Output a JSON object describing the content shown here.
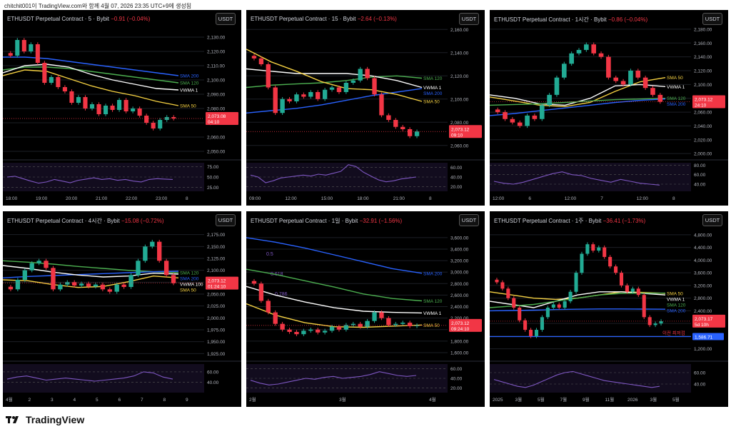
{
  "header": {
    "caption": "chitchit001이 TradingView.com와 함께 4월 07, 2026 23:35 UTC+9에 생성됨"
  },
  "footer": {
    "brand": "TradingView"
  },
  "colors": {
    "up": "#22ab94",
    "down": "#f23645",
    "sma200": "#2962ff",
    "sma120": "#4caf50",
    "sma50": "#f5d142",
    "vwma": "#ffffff",
    "rsi": "#7e57c2",
    "bb": "#b2b5be"
  },
  "panels": [
    {
      "title": "ETHUSDT Perpetual Contract · 5 · Bybit",
      "change": "−0.91 (−0.04%)",
      "button": "USDT"
    },
    {
      "title": "ETHUSDT Perpetual Contract · 15 · Bybit",
      "change": "−2.64 (−0.13%)",
      "button": "USDT"
    },
    {
      "title": "ETHUSDT Perpetual Contract · 1시간 · Bybit",
      "change": "−0.86 (−0.04%)",
      "button": "USDT"
    },
    {
      "title": "ETHUSDT Perpetual Contract · 4시간 · Bybit",
      "change": "−15.08 (−0.72%)",
      "button": "USDT"
    },
    {
      "title": "ETHUSDT Perpetual Contract · 1일 · Bybit",
      "change": "−32.91 (−1.56%)",
      "button": "USDT"
    },
    {
      "title": "ETHUSDT Perpetual Contract · 1주 · Bybit",
      "change": "−36.41 (−1.73%)",
      "button": "USDT"
    }
  ],
  "chart_data": [
    {
      "type": "candlestick",
      "timeframe": "5",
      "price_axis": [
        "2,130.00",
        "2,120.00",
        "2,110.00",
        "2,100.00",
        "2,090.00",
        "2,080.00",
        "2,070.00",
        "2,060.00",
        "2,050.00"
      ],
      "ylim": [
        2046,
        2137
      ],
      "x_labels": [
        "18:00",
        "19:00",
        "20:00",
        "21:00",
        "22:00",
        "23:00",
        "8"
      ],
      "close": [
        2117,
        2128,
        2120,
        2125,
        2112,
        2098,
        2102,
        2095,
        2092,
        2084,
        2088,
        2080,
        2083,
        2076,
        2082,
        2079,
        2086,
        2078,
        2080,
        2075,
        2070,
        2066,
        2072,
        2074,
        2073
      ],
      "overlays": [
        {
          "name": "SMA 200",
          "values": [
            2116,
            2116,
            2115,
            2113,
            2111,
            2109,
            2107,
            2105,
            2103
          ]
        },
        {
          "name": "SMA 120",
          "values": [
            2107,
            2109,
            2109,
            2108,
            2106,
            2104,
            2102,
            2100,
            2098
          ]
        },
        {
          "name": "VWMA 1",
          "values": [
            2105,
            2110,
            2111,
            2109,
            2104,
            2100,
            2097,
            2094,
            2093
          ]
        },
        {
          "name": "SMA 50",
          "values": [
            2103,
            2107,
            2106,
            2101,
            2096,
            2092,
            2089,
            2085,
            2082
          ]
        }
      ],
      "last_price": "2,073.08",
      "countdown": "04:10",
      "rsi_axis": [
        "75.00",
        "50.00",
        "25.00"
      ],
      "rsi_ylim": [
        15,
        85
      ],
      "rsi": [
        50,
        52,
        46,
        40,
        35,
        38,
        44,
        40,
        36,
        42,
        45,
        48,
        44,
        46,
        42,
        44,
        40,
        38,
        44,
        46,
        45,
        44
      ]
    },
    {
      "type": "candlestick",
      "timeframe": "15",
      "price_axis": [
        "2,160.00",
        "2,140.00",
        "2,120.00",
        "2,100.00",
        "2,080.00",
        "2,060.00"
      ],
      "ylim": [
        2050,
        2162
      ],
      "x_labels": [
        "09:00",
        "12:00",
        "15:00",
        "18:00",
        "21:00",
        "8"
      ],
      "close": [
        2135,
        2130,
        2110,
        2088,
        2100,
        2098,
        2104,
        2102,
        2106,
        2100,
        2108,
        2110,
        2106,
        2114,
        2116,
        2126,
        2118,
        2104,
        2086,
        2082,
        2076,
        2074,
        2068,
        2072
      ],
      "overlays": [
        {
          "name": "SMA 120",
          "values": [
            2110,
            2112,
            2113,
            2114,
            2116,
            2119,
            2120,
            2118
          ]
        },
        {
          "name": "VWMA 1",
          "values": [
            2126,
            2124,
            2122,
            2122,
            2122,
            2120,
            2116,
            2110
          ]
        },
        {
          "name": "SMA 200",
          "values": [
            2088,
            2090,
            2092,
            2095,
            2099,
            2103,
            2106,
            2109
          ]
        },
        {
          "name": "SMA 50",
          "values": [
            2143,
            2132,
            2124,
            2115,
            2109,
            2108,
            2104,
            2098
          ]
        }
      ],
      "last_price": "2,073.12",
      "countdown": "09:10",
      "rsi_axis": [
        "60.00",
        "40.00",
        "20.00"
      ],
      "rsi_ylim": [
        10,
        70
      ],
      "rsi": [
        44,
        40,
        28,
        32,
        38,
        40,
        42,
        44,
        42,
        46,
        44,
        48,
        52,
        66,
        62,
        50,
        42,
        34,
        30,
        32,
        36,
        38,
        40
      ]
    },
    {
      "type": "candlestick",
      "timeframe": "1시간",
      "price_axis": [
        "2,180.00",
        "2,160.00",
        "2,140.00",
        "2,120.00",
        "2,100.00",
        "2,080.00",
        "2,060.00",
        "2,040.00",
        "2,020.00",
        "2,000.00"
      ],
      "ylim": [
        1995,
        2183
      ],
      "x_labels": [
        "12:00",
        "6",
        "12:00",
        "7",
        "12:00",
        "8"
      ],
      "close": [
        2060,
        2050,
        2045,
        2040,
        2055,
        2050,
        2070,
        2085,
        2110,
        2130,
        2145,
        2150,
        2158,
        2145,
        2140,
        2110,
        2105,
        2100,
        2120,
        2110,
        2095,
        2085,
        2075
      ],
      "overlays": [
        {
          "name": "SMA 50",
          "values": [
            2082,
            2076,
            2070,
            2068,
            2074,
            2090,
            2104,
            2110
          ]
        },
        {
          "name": "VWMA 1",
          "values": [
            2085,
            2080,
            2072,
            2070,
            2080,
            2098,
            2100,
            2097
          ]
        },
        {
          "name": "SMA 120",
          "values": [
            2070,
            2071,
            2072,
            2074,
            2076,
            2078,
            2079,
            2080
          ]
        },
        {
          "name": "SMA 200",
          "values": [
            2055,
            2058,
            2062,
            2066,
            2070,
            2074,
            2077,
            2079
          ]
        }
      ],
      "last_price": "2,073.12",
      "countdown": "24:10",
      "rsi_axis": [
        "80.00",
        "60.00",
        "40.00"
      ],
      "rsi_ylim": [
        25,
        85
      ],
      "rsi": [
        46,
        42,
        40,
        44,
        50,
        56,
        62,
        66,
        60,
        58,
        52,
        48,
        44,
        50,
        46,
        42,
        40,
        38
      ]
    },
    {
      "type": "candlestick",
      "timeframe": "4시간",
      "price_axis": [
        "2,175.00",
        "2,150.00",
        "2,125.00",
        "2,100.00",
        "2,075.00",
        "2,050.00",
        "2,025.00",
        "2,000.00",
        "1,975.00",
        "1,950.00",
        "1,925.00"
      ],
      "ylim": [
        1915,
        2188
      ],
      "x_labels": [
        "4월",
        "2",
        "3",
        "4",
        "5",
        "6",
        "7",
        "8",
        "9"
      ],
      "close": [
        2060,
        2080,
        2100,
        2115,
        2120,
        2105,
        2060,
        2070,
        2075,
        2068,
        2072,
        2066,
        2070,
        2060,
        2055,
        2070,
        2065,
        2090,
        2120,
        2150,
        2160,
        2120,
        2090,
        2073
      ],
      "overlays": [
        {
          "name": "SMA 120",
          "values": [
            2120,
            2117,
            2113,
            2108,
            2104,
            2100,
            2097,
            2095
          ]
        },
        {
          "name": "SMA 200",
          "values": [
            2084,
            2087,
            2089,
            2091,
            2093,
            2095,
            2097,
            2098
          ]
        },
        {
          "name": "VWMA 100",
          "values": [
            2110,
            2104,
            2096,
            2090,
            2086,
            2088,
            2094,
            2092
          ]
        },
        {
          "name": "SMA 50",
          "values": [
            2080,
            2078,
            2070,
            2064,
            2066,
            2076,
            2088,
            2084
          ]
        }
      ],
      "last_price": "2,073.12",
      "countdown": "01:24:10",
      "rsi_axis": [
        "60.00",
        "40.00"
      ],
      "rsi_ylim": [
        20,
        75
      ],
      "rsi": [
        46,
        50,
        52,
        48,
        44,
        46,
        48,
        46,
        44,
        42,
        44,
        46,
        48,
        52,
        60,
        58,
        50,
        46
      ]
    },
    {
      "type": "candlestick",
      "timeframe": "1일",
      "price_axis": [
        "3,600.00",
        "3,400.00",
        "3,200.00",
        "3,000.00",
        "2,800.00",
        "2,600.00",
        "2,400.00",
        "2,200.00",
        "2,000.00",
        "1,800.00",
        "1,600.00"
      ],
      "ylim": [
        1500,
        3760
      ],
      "x_labels": [
        "2월",
        "3월",
        "4월"
      ],
      "fib_labels": [
        "0.5",
        "0.618",
        "0.786"
      ],
      "close": [
        2800,
        2500,
        2300,
        2100,
        2000,
        1960,
        1920,
        1980,
        2000,
        1950,
        1980,
        2050,
        2000,
        2080,
        2100,
        2050,
        2150,
        2300,
        2200,
        2080,
        2100,
        2120,
        2060,
        2073
      ],
      "overlays": [
        {
          "name": "SMA 200",
          "values": [
            3600,
            3520,
            3420,
            3300,
            3180,
            3060,
            2980
          ]
        },
        {
          "name": "SMA 120",
          "values": [
            3050,
            2960,
            2850,
            2740,
            2620,
            2540,
            2500
          ]
        },
        {
          "name": "VWMA 1",
          "values": [
            2750,
            2600,
            2480,
            2380,
            2320,
            2300,
            2290
          ]
        },
        {
          "name": "SMA 50",
          "values": [
            2450,
            2250,
            2120,
            2050,
            2040,
            2060,
            2080
          ]
        }
      ],
      "last_price": "2,073.12",
      "countdown": "09:24:10",
      "rsi_axis": [
        "60.00",
        "40.00",
        "20.00"
      ],
      "rsi_ylim": [
        10,
        70
      ],
      "rsi": [
        36,
        30,
        26,
        28,
        32,
        36,
        40,
        38,
        42,
        44,
        40,
        42,
        44,
        48,
        54,
        50,
        46,
        44,
        46
      ]
    },
    {
      "type": "candlestick",
      "timeframe": "1주",
      "price_axis": [
        "4,800.00",
        "4,400.00",
        "4,000.00",
        "3,600.00",
        "3,200.00",
        "2,800.00",
        "2,400.00",
        "2,000.00",
        "1,600.00",
        "1,200.00"
      ],
      "ylim": [
        900,
        5000
      ],
      "x_labels": [
        "2025",
        "3월",
        "5월",
        "7월",
        "9월",
        "11월",
        "2026",
        "3월",
        "5월"
      ],
      "close": [
        3300,
        3100,
        2800,
        2500,
        2100,
        1800,
        1600,
        1800,
        2200,
        2500,
        2600,
        2500,
        2700,
        3000,
        3600,
        4200,
        4500,
        4300,
        4400,
        4100,
        3800,
        3600,
        3200,
        3000,
        3100,
        2900,
        2200,
        1950,
        2000,
        2073
      ],
      "overlays": [
        {
          "name": "SMA 50",
          "values": [
            3000,
            2900,
            2800,
            2760,
            2800,
            2900,
            3000,
            2980,
            2950
          ]
        },
        {
          "name": "VWMA 1",
          "values": [
            2700,
            2600,
            2500,
            2700,
            2900,
            3000,
            3000,
            2950,
            2900
          ]
        },
        {
          "name": "SMA 120",
          "values": [
            2500,
            2550,
            2600,
            2700,
            2800,
            2900,
            2950,
            2960,
            2960
          ]
        },
        {
          "name": "SMA 200",
          "values": [
            2400,
            2410,
            2420,
            2440,
            2450,
            2460,
            2460,
            2455,
            2450
          ]
        }
      ],
      "support_label": "이전 최저점",
      "support_price": "1,586.71",
      "support_value": 1586.71,
      "last_price": "2,073.17",
      "countdown": "5d 10h",
      "rsi_axis": [
        "60.00",
        "40.00"
      ],
      "rsi_ylim": [
        25,
        75
      ],
      "rsi": [
        48,
        44,
        40,
        36,
        34,
        38,
        44,
        50,
        56,
        60,
        62,
        58,
        54,
        50,
        46,
        44,
        42,
        40,
        38,
        36,
        34,
        36
      ]
    }
  ]
}
